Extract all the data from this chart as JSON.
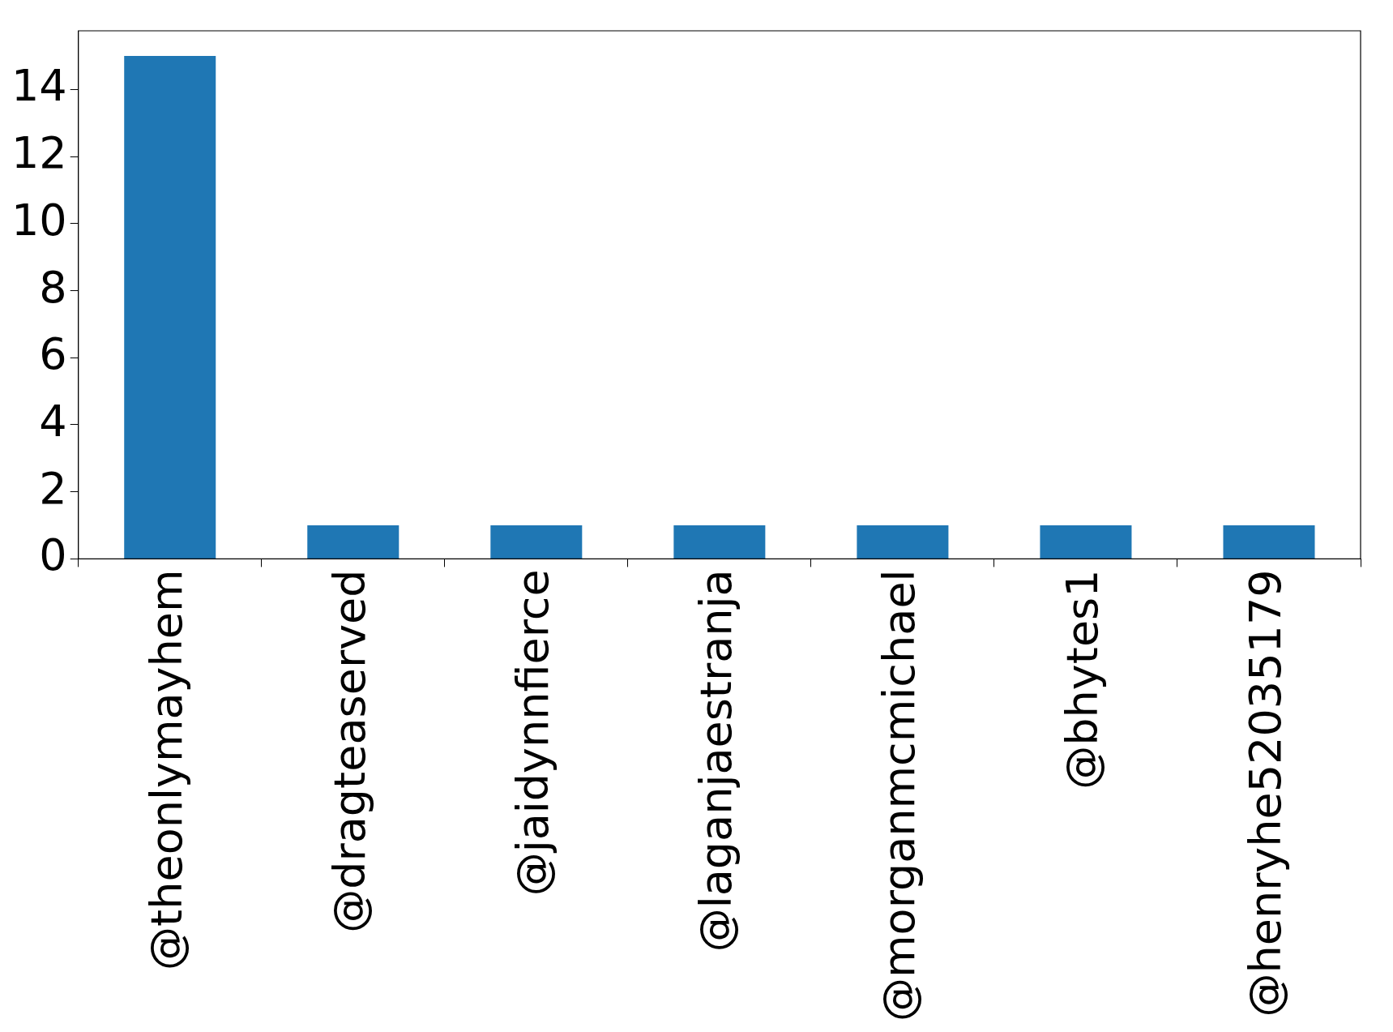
{
  "chart_data": {
    "type": "bar",
    "categories": [
      "@theonlymayhem",
      "@dragteaserved",
      "@jaidynnfierce",
      "@laganjaestranja",
      "@morganmcmichael",
      "@bhytes1",
      "@henryhe52035179"
    ],
    "values": [
      15,
      1,
      1,
      1,
      1,
      1,
      1
    ],
    "color": "#1f77b4",
    "ylim": [
      0,
      15.75
    ],
    "yticks": [
      0,
      2,
      4,
      6,
      8,
      10,
      12,
      14
    ]
  }
}
